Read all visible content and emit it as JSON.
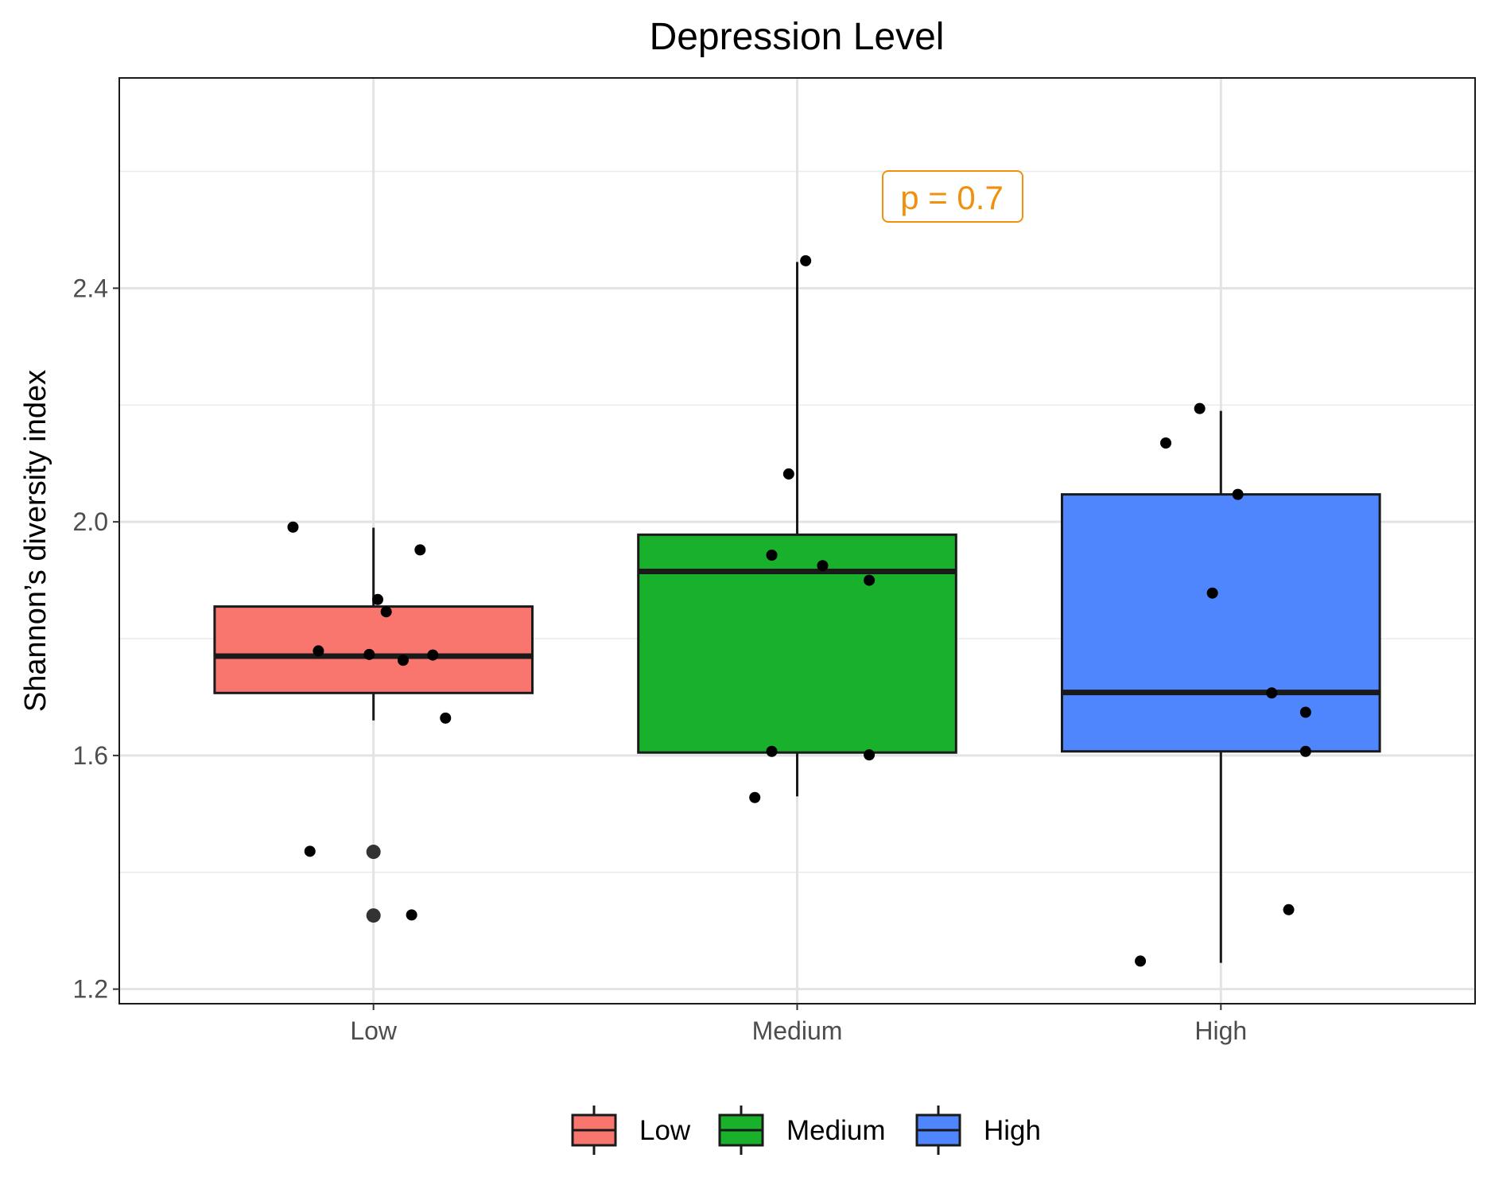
{
  "chart_data": {
    "type": "box",
    "title": "Depression Level",
    "xlabel": "",
    "ylabel": "Shannon’s diversity index",
    "ylim": [
      1.175,
      2.76
    ],
    "y_ticks": [
      1.2,
      1.6,
      2.0,
      2.4
    ],
    "y_tick_labels": [
      "1.2",
      "1.6",
      "2.0",
      "2.4"
    ],
    "y_minor_gridlines": [
      1.4,
      1.8,
      2.2,
      2.6
    ],
    "grid": true,
    "legend_position": "bottom",
    "annotation": "p = 0.7",
    "categories": [
      "Low",
      "Medium",
      "High"
    ],
    "colors": {
      "Low": "#f8766d",
      "Medium": "#19b02b",
      "High": "#4f86fe",
      "annotation": "#f0900e"
    },
    "boxes": [
      {
        "name": "Low",
        "whisker_low": 1.66,
        "q1": 1.707,
        "median": 1.77,
        "q3": 1.855,
        "whisker_high": 1.99
      },
      {
        "name": "Medium",
        "whisker_low": 1.53,
        "q1": 1.605,
        "median": 1.915,
        "q3": 1.978,
        "whisker_high": 2.445
      },
      {
        "name": "High",
        "whisker_low": 1.245,
        "q1": 1.607,
        "median": 1.708,
        "q3": 2.047,
        "whisker_high": 2.19
      }
    ],
    "outliers": [
      {
        "group": "Low",
        "values": [
          1.435,
          1.326
        ]
      }
    ],
    "points": [
      {
        "group": "Low",
        "jitter": -0.19,
        "y": 1.991
      },
      {
        "group": "Low",
        "jitter": 0.11,
        "y": 1.952
      },
      {
        "group": "Low",
        "jitter": 0.01,
        "y": 1.867
      },
      {
        "group": "Low",
        "jitter": 0.03,
        "y": 1.846
      },
      {
        "group": "Low",
        "jitter": -0.13,
        "y": 1.779
      },
      {
        "group": "Low",
        "jitter": -0.01,
        "y": 1.773
      },
      {
        "group": "Low",
        "jitter": 0.14,
        "y": 1.772
      },
      {
        "group": "Low",
        "jitter": 0.07,
        "y": 1.763
      },
      {
        "group": "Low",
        "jitter": 0.17,
        "y": 1.664
      },
      {
        "group": "Low",
        "jitter": -0.15,
        "y": 1.436
      },
      {
        "group": "Low",
        "jitter": 0.09,
        "y": 1.327
      },
      {
        "group": "Medium",
        "jitter": 0.02,
        "y": 2.447
      },
      {
        "group": "Medium",
        "jitter": -0.02,
        "y": 2.082
      },
      {
        "group": "Medium",
        "jitter": -0.06,
        "y": 1.943
      },
      {
        "group": "Medium",
        "jitter": 0.06,
        "y": 1.925
      },
      {
        "group": "Medium",
        "jitter": 0.17,
        "y": 1.9
      },
      {
        "group": "Medium",
        "jitter": -0.06,
        "y": 1.607
      },
      {
        "group": "Medium",
        "jitter": 0.17,
        "y": 1.601
      },
      {
        "group": "Medium",
        "jitter": -0.1,
        "y": 1.528
      },
      {
        "group": "High",
        "jitter": -0.05,
        "y": 2.194
      },
      {
        "group": "High",
        "jitter": -0.13,
        "y": 2.135
      },
      {
        "group": "High",
        "jitter": 0.04,
        "y": 2.047
      },
      {
        "group": "High",
        "jitter": -0.02,
        "y": 1.878
      },
      {
        "group": "High",
        "jitter": 0.12,
        "y": 1.707
      },
      {
        "group": "High",
        "jitter": 0.2,
        "y": 1.674
      },
      {
        "group": "High",
        "jitter": 0.2,
        "y": 1.607
      },
      {
        "group": "High",
        "jitter": 0.16,
        "y": 1.336
      },
      {
        "group": "High",
        "jitter": -0.19,
        "y": 1.248
      }
    ],
    "legend": [
      "Low",
      "Medium",
      "High"
    ]
  }
}
